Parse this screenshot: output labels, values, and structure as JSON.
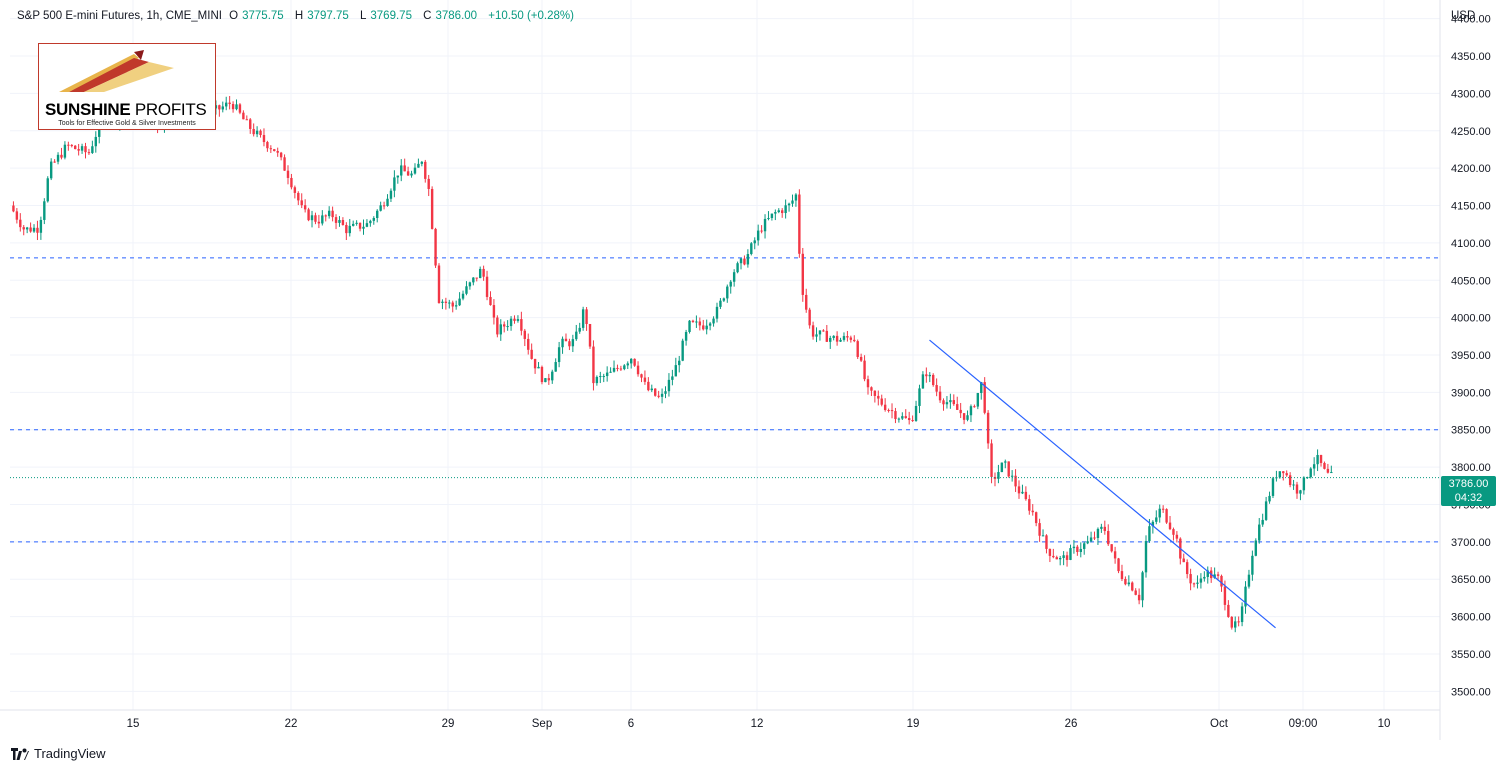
{
  "legend": {
    "title": "S&P 500 E-mini Futures, 1h, CME_MINI",
    "open_k": "O",
    "open_v": "3775.75",
    "high_k": "H",
    "high_v": "3797.75",
    "low_k": "L",
    "low_v": "3769.75",
    "close_k": "C",
    "close_v": "3786.00",
    "change": "+10.50 (+0.28%)"
  },
  "logo": {
    "brand_a": "SUNSHINE",
    "brand_b": "PROFITS",
    "tagline": "Tools for Effective Gold & Silver Investments"
  },
  "currency": "USD",
  "price_badge": {
    "price": "3786.00",
    "countdown": "04:32"
  },
  "footer": {
    "brand": "TradingView",
    "icon": "tradingview-logo-icon"
  },
  "colors": {
    "up": "#089981",
    "down": "#f23645",
    "hline": "#2962ff",
    "trend": "#2962ff"
  },
  "chart_data": {
    "type": "candlestick",
    "title": "S&P 500 E-mini Futures, 1h, CME_MINI",
    "ylim": [
      3475,
      4425
    ],
    "yticks": [
      4400,
      4350,
      4300,
      4250,
      4200,
      4150,
      4100,
      4050,
      4000,
      3950,
      3900,
      3850,
      3800,
      3750,
      3700,
      3650,
      3600,
      3550,
      3500
    ],
    "ytick_labels": [
      "4400.00",
      "4350.00",
      "4300.00",
      "4250.00",
      "4200.00",
      "4150.00",
      "4100.00",
      "4050.00",
      "4000.00",
      "3950.00",
      "3900.00",
      "3850.00",
      "3800.00",
      "3750.00",
      "3700.00",
      "3650.00",
      "3600.00",
      "3550.00",
      "3500.00"
    ],
    "xtick_labels": [
      "15",
      "22",
      "29",
      "Sep",
      "6",
      "12",
      "19",
      "26",
      "Oct",
      "09:00",
      "10"
    ],
    "horizontal_levels": [
      4080,
      3850,
      3700
    ],
    "last_price": 3786.0,
    "trendline": {
      "from": {
        "t": 0.643,
        "price": 3970
      },
      "to": {
        "t": 0.885,
        "price": 3585
      }
    },
    "path": [
      [
        0.0,
        4150
      ],
      [
        0.01,
        4118
      ],
      [
        0.02,
        4120
      ],
      [
        0.028,
        4200
      ],
      [
        0.04,
        4230
      ],
      [
        0.055,
        4220
      ],
      [
        0.065,
        4270
      ],
      [
        0.08,
        4265
      ],
      [
        0.095,
        4275
      ],
      [
        0.105,
        4255
      ],
      [
        0.118,
        4285
      ],
      [
        0.132,
        4270
      ],
      [
        0.145,
        4278
      ],
      [
        0.155,
        4288
      ],
      [
        0.165,
        4260
      ],
      [
        0.175,
        4240
      ],
      [
        0.185,
        4225
      ],
      [
        0.195,
        4190
      ],
      [
        0.205,
        4140
      ],
      [
        0.215,
        4130
      ],
      [
        0.225,
        4138
      ],
      [
        0.235,
        4118
      ],
      [
        0.25,
        4125
      ],
      [
        0.26,
        4150
      ],
      [
        0.272,
        4198
      ],
      [
        0.282,
        4190
      ],
      [
        0.288,
        4212
      ],
      [
        0.293,
        4170
      ],
      [
        0.3,
        4025
      ],
      [
        0.31,
        4015
      ],
      [
        0.32,
        4040
      ],
      [
        0.33,
        4065
      ],
      [
        0.34,
        3980
      ],
      [
        0.355,
        4005
      ],
      [
        0.365,
        3945
      ],
      [
        0.375,
        3910
      ],
      [
        0.385,
        3965
      ],
      [
        0.395,
        3968
      ],
      [
        0.402,
        4015
      ],
      [
        0.408,
        3915
      ],
      [
        0.42,
        3925
      ],
      [
        0.435,
        3948
      ],
      [
        0.445,
        3905
      ],
      [
        0.455,
        3890
      ],
      [
        0.465,
        3930
      ],
      [
        0.475,
        3990
      ],
      [
        0.485,
        3990
      ],
      [
        0.495,
        4010
      ],
      [
        0.505,
        4060
      ],
      [
        0.515,
        4080
      ],
      [
        0.525,
        4120
      ],
      [
        0.535,
        4140
      ],
      [
        0.545,
        4150
      ],
      [
        0.55,
        4165
      ],
      [
        0.553,
        4050
      ],
      [
        0.56,
        3980
      ],
      [
        0.57,
        3975
      ],
      [
        0.58,
        3970
      ],
      [
        0.59,
        3975
      ],
      [
        0.6,
        3900
      ],
      [
        0.61,
        3885
      ],
      [
        0.62,
        3870
      ],
      [
        0.63,
        3860
      ],
      [
        0.64,
        3930
      ],
      [
        0.65,
        3895
      ],
      [
        0.66,
        3880
      ],
      [
        0.67,
        3865
      ],
      [
        0.68,
        3915
      ],
      [
        0.686,
        3780
      ],
      [
        0.695,
        3805
      ],
      [
        0.705,
        3770
      ],
      [
        0.715,
        3740
      ],
      [
        0.725,
        3690
      ],
      [
        0.735,
        3675
      ],
      [
        0.745,
        3690
      ],
      [
        0.755,
        3700
      ],
      [
        0.765,
        3720
      ],
      [
        0.775,
        3660
      ],
      [
        0.785,
        3640
      ],
      [
        0.79,
        3625
      ],
      [
        0.795,
        3710
      ],
      [
        0.805,
        3745
      ],
      [
        0.815,
        3710
      ],
      [
        0.82,
        3670
      ],
      [
        0.825,
        3650
      ],
      [
        0.83,
        3640
      ],
      [
        0.835,
        3660
      ],
      [
        0.845,
        3650
      ],
      [
        0.85,
        3620
      ],
      [
        0.855,
        3585
      ],
      [
        0.86,
        3590
      ],
      [
        0.865,
        3645
      ],
      [
        0.87,
        3700
      ],
      [
        0.875,
        3730
      ],
      [
        0.88,
        3760
      ],
      [
        0.885,
        3790
      ],
      [
        0.89,
        3800
      ],
      [
        0.895,
        3780
      ],
      [
        0.9,
        3770
      ],
      [
        0.905,
        3780
      ],
      [
        0.91,
        3805
      ],
      [
        0.915,
        3810
      ],
      [
        0.92,
        3790
      ],
      [
        0.925,
        3786
      ]
    ]
  }
}
